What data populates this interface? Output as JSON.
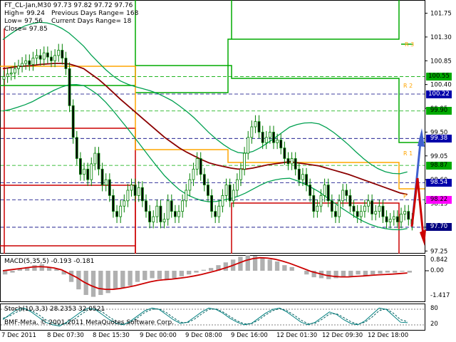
{
  "colors": {
    "background": "#ffffff",
    "candle": "#008000",
    "ma": "#8b0000",
    "pivot_support": "#cc0000",
    "pivot_resistance": "#00aa00",
    "pivot_mid": "#ffa500",
    "bollinger": "#00a050",
    "macd_hist": "#b0b0b0",
    "macd_signal": "#cc0000",
    "stoch_main": "#008080",
    "stoch_signal": "#006060",
    "arrow_up": "#4060d0",
    "arrow_down": "#cc0000"
  },
  "header": {
    "symbol_line": "FT_CL-Jan,M30  97.73 97.82 97.72 97.76",
    "high": "High= 99.24",
    "low": "Low= 97.56",
    "close": "Close= 97.85",
    "prev_range": "Previous Days Range= 168",
    "curr_range": "Current Days Range= 18"
  },
  "price_axis": {
    "ticks": [
      "101.75",
      "101.30",
      "100.85",
      "100.40",
      "99.95",
      "99.50",
      "99.05",
      "98.60",
      "98.15",
      "97.70",
      "97.25"
    ]
  },
  "price_tags": [
    {
      "label": "100.55",
      "value": 100.55,
      "bg": "#00aa00",
      "fg": "#000000"
    },
    {
      "label": "100.22",
      "value": 100.22,
      "bg": "#0000aa",
      "fg": "#ffffff"
    },
    {
      "label": "99.90",
      "value": 99.9,
      "bg": "#00aa00",
      "fg": "#000000"
    },
    {
      "label": "99.38",
      "value": 99.38,
      "bg": "#0000aa",
      "fg": "#ffffff"
    },
    {
      "label": "98.87",
      "value": 98.87,
      "bg": "#00aa00",
      "fg": "#000000"
    },
    {
      "label": "98.54",
      "value": 98.54,
      "bg": "#0000aa",
      "fg": "#ffffff"
    },
    {
      "label": "98.22",
      "value": 98.22,
      "bg": "#ff00ff",
      "fg": "#000000"
    },
    {
      "label": "97.70",
      "value": 97.7,
      "bg": "#000080",
      "fg": "#ffffff"
    }
  ],
  "levels": {
    "r3": "R 3",
    "r2": "R 2",
    "r1": "R 1",
    "p": "P"
  },
  "macd": {
    "label": "MACD(5,35,5) -0.193 -0.181",
    "axis_top": "0.842",
    "axis_zero": "0.00",
    "axis_bottom": "-1.417"
  },
  "stoch": {
    "label": "Stoch(10,3,3) 28.2353 32.0521",
    "axis_80": "80",
    "axis_20": "20"
  },
  "watermark": "BMF-Meta, © 2001-2011 MetaQuotes Software Corp.",
  "time_axis": {
    "ticks": [
      "7 Dec 2011",
      "8 Dec 07:30",
      "8 Dec 15:30",
      "9 Dec 00:00",
      "9 Dec 08:00",
      "9 Dec 16:00",
      "12 Dec 01:30",
      "12 Dec 09:30",
      "12 Dec 18:00"
    ]
  },
  "chart_data": {
    "type": "candlestick",
    "ylim": [
      97.2,
      102.0
    ],
    "closes": [
      100.55,
      100.6,
      100.62,
      100.7,
      100.75,
      100.8,
      100.85,
      100.78,
      100.9,
      100.95,
      100.88,
      101.0,
      100.92,
      100.85,
      100.95,
      101.05,
      100.9,
      100.7,
      100.0,
      99.4,
      99.0,
      98.7,
      98.8,
      98.6,
      98.9,
      99.1,
      98.8,
      98.5,
      98.6,
      98.3,
      98.0,
      97.9,
      98.1,
      98.2,
      98.4,
      98.5,
      98.3,
      98.45,
      98.2,
      98.0,
      97.8,
      97.9,
      98.1,
      97.8,
      97.85,
      98.2,
      98.0,
      97.9,
      98.0,
      98.2,
      98.4,
      98.6,
      98.8,
      99.0,
      98.7,
      98.5,
      98.3,
      98.0,
      97.9,
      98.1,
      98.3,
      98.5,
      98.2,
      98.4,
      98.6,
      98.8,
      99.1,
      99.4,
      99.6,
      99.7,
      99.5,
      99.3,
      99.4,
      99.5,
      99.3,
      99.35,
      99.2,
      99.0,
      98.9,
      99.0,
      98.8,
      98.6,
      98.7,
      98.5,
      98.3,
      98.0,
      98.1,
      98.3,
      98.5,
      98.2,
      98.0,
      97.9,
      98.2,
      98.4,
      98.3,
      98.1,
      98.0,
      97.9,
      98.0,
      98.1,
      98.2,
      97.95,
      98.0,
      98.1,
      97.9,
      97.8,
      97.85,
      97.9,
      97.8,
      97.95,
      98.0,
      97.85,
      97.76
    ],
    "ma_closes": [
      100.7,
      100.72,
      100.74,
      100.75,
      100.76,
      100.78,
      100.79,
      100.8,
      100.8,
      100.79,
      100.75,
      100.7,
      100.6,
      100.5,
      100.38,
      100.25,
      100.12,
      100.0,
      99.88,
      99.76,
      99.64,
      99.52,
      99.4,
      99.3,
      99.2,
      99.12,
      99.05,
      98.98,
      98.92,
      98.88,
      98.85,
      98.82,
      98.8,
      98.8,
      98.82,
      98.85,
      98.88,
      98.9,
      98.92,
      98.94,
      98.92,
      98.9,
      98.88,
      98.86,
      98.82,
      98.78,
      98.74,
      98.7,
      98.65,
      98.6,
      98.55,
      98.5,
      98.45,
      98.4,
      98.35,
      98.32
    ],
    "macd_hist": [
      -0.2,
      -0.1,
      0.1,
      0.2,
      0.3,
      0.35,
      0.2,
      0.1,
      -0.2,
      -0.6,
      -1.0,
      -1.3,
      -1.4,
      -1.3,
      -1.2,
      -1.0,
      -0.9,
      -0.8,
      -0.6,
      -0.5,
      -0.4,
      -0.45,
      -0.5,
      -0.4,
      -0.3,
      -0.2,
      -0.1,
      0.05,
      0.15,
      0.3,
      0.45,
      0.6,
      0.75,
      0.84,
      0.8,
      0.7,
      0.6,
      0.5,
      0.3,
      0.2,
      0.0,
      -0.2,
      -0.35,
      -0.4,
      -0.45,
      -0.4,
      -0.35,
      -0.3,
      -0.2,
      -0.25,
      -0.2,
      -0.15,
      -0.1,
      -0.1,
      -0.05,
      -0.1
    ],
    "macd_signal": [
      0.0,
      0.05,
      0.1,
      0.15,
      0.2,
      0.22,
      0.2,
      0.15,
      0.05,
      -0.15,
      -0.35,
      -0.6,
      -0.8,
      -0.95,
      -1.0,
      -1.0,
      -0.95,
      -0.88,
      -0.8,
      -0.7,
      -0.6,
      -0.52,
      -0.48,
      -0.45,
      -0.4,
      -0.35,
      -0.28,
      -0.2,
      -0.1,
      0.0,
      0.12,
      0.25,
      0.4,
      0.55,
      0.65,
      0.7,
      0.68,
      0.62,
      0.52,
      0.4,
      0.25,
      0.1,
      -0.05,
      -0.15,
      -0.25,
      -0.3,
      -0.33,
      -0.33,
      -0.3,
      -0.28,
      -0.25,
      -0.22,
      -0.2,
      -0.18,
      -0.15,
      -0.12
    ],
    "stoch_main": [
      40,
      60,
      80,
      85,
      70,
      50,
      30,
      20,
      15,
      30,
      50,
      70,
      85,
      80,
      60,
      40,
      25,
      20,
      35,
      55,
      75,
      85,
      80,
      60,
      40,
      25,
      30,
      50,
      70,
      85,
      80,
      65,
      45,
      30,
      20,
      25,
      45,
      65,
      80,
      85,
      70,
      50,
      30,
      20,
      30,
      50,
      70,
      60,
      40,
      25,
      20,
      35,
      60,
      85,
      80,
      55,
      30,
      28
    ],
    "stoch_signal": [
      45,
      55,
      70,
      80,
      75,
      60,
      40,
      28,
      20,
      25,
      40,
      60,
      78,
      82,
      70,
      50,
      32,
      22,
      30,
      48,
      68,
      80,
      82,
      68,
      48,
      30,
      28,
      42,
      62,
      80,
      82,
      70,
      52,
      35,
      24,
      24,
      38,
      58,
      75,
      83,
      75,
      58,
      38,
      24,
      26,
      42,
      62,
      63,
      48,
      32,
      22,
      30,
      50,
      75,
      82,
      65,
      40,
      32
    ]
  }
}
